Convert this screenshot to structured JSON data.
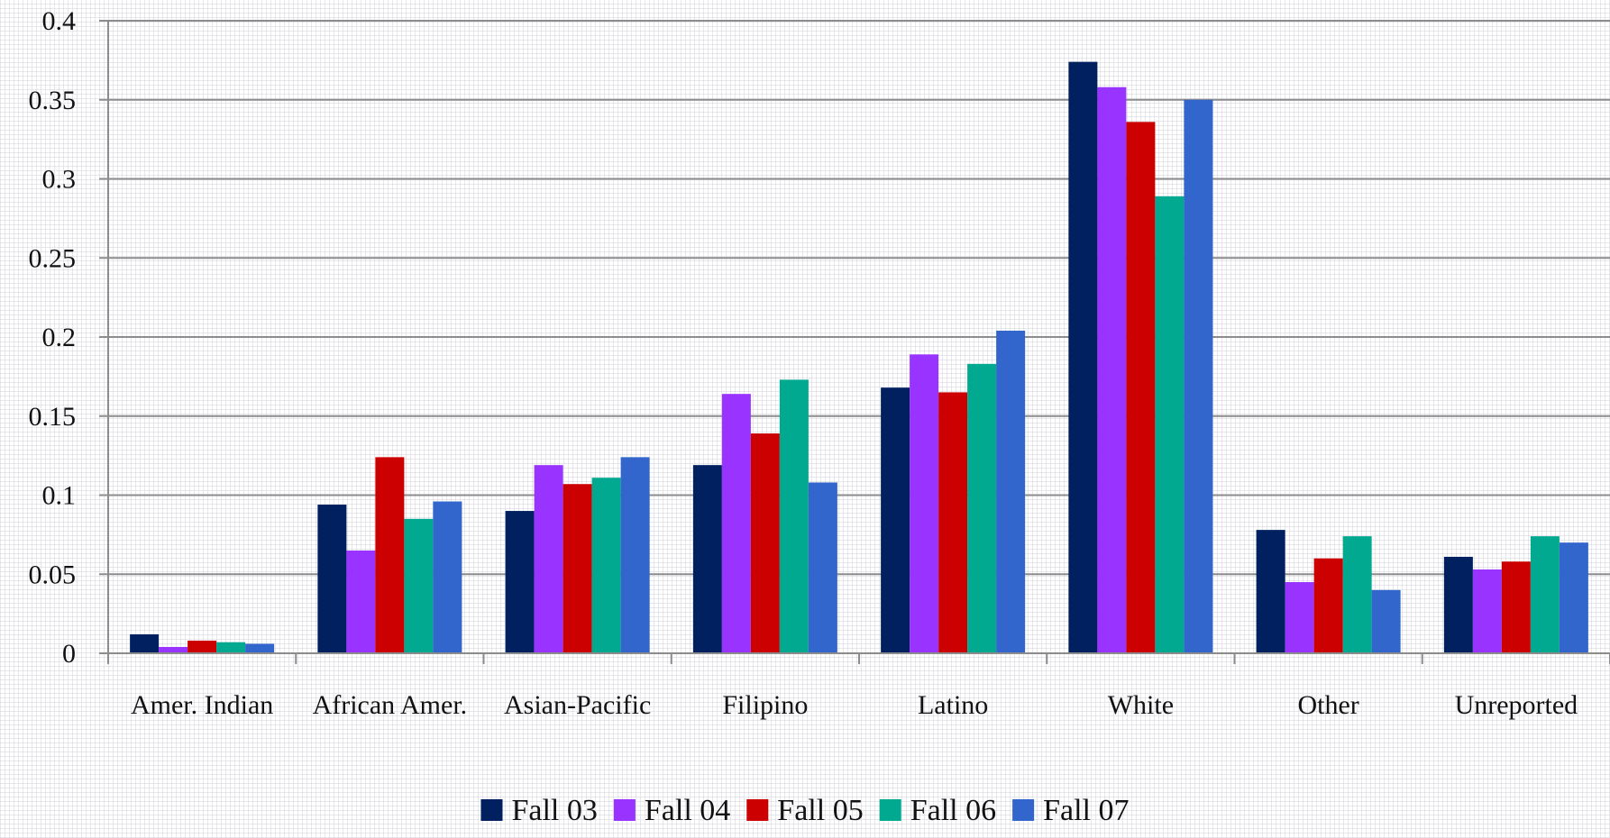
{
  "chart_data": {
    "type": "bar",
    "title": "",
    "xlabel": "",
    "ylabel": "",
    "ylim": [
      0,
      0.4
    ],
    "yticks": [
      "0",
      "0.05",
      "0.1",
      "0.15",
      "0.2",
      "0.25",
      "0.3",
      "0.35",
      "0.4"
    ],
    "grid": "horizontal",
    "legend_position": "bottom",
    "categories": [
      "Amer. Indian",
      "African Amer.",
      "Asian-Pacific",
      "Filipino",
      "Latino",
      "White",
      "Other",
      "Unreported"
    ],
    "series": [
      {
        "name": "Fall 03",
        "color": "#002060",
        "values": [
          0.012,
          0.094,
          0.09,
          0.119,
          0.168,
          0.374,
          0.078,
          0.061
        ]
      },
      {
        "name": "Fall 04",
        "color": "#9933FF",
        "values": [
          0.004,
          0.065,
          0.119,
          0.164,
          0.189,
          0.358,
          0.045,
          0.053
        ]
      },
      {
        "name": "Fall 05",
        "color": "#CC0000",
        "values": [
          0.008,
          0.124,
          0.107,
          0.139,
          0.165,
          0.336,
          0.06,
          0.058
        ]
      },
      {
        "name": "Fall 06",
        "color": "#00A98F",
        "values": [
          0.007,
          0.085,
          0.111,
          0.173,
          0.183,
          0.289,
          0.074,
          0.074
        ]
      },
      {
        "name": "Fall 07",
        "color": "#3366CC",
        "values": [
          0.006,
          0.096,
          0.124,
          0.108,
          0.204,
          0.35,
          0.04,
          0.07
        ]
      }
    ]
  }
}
